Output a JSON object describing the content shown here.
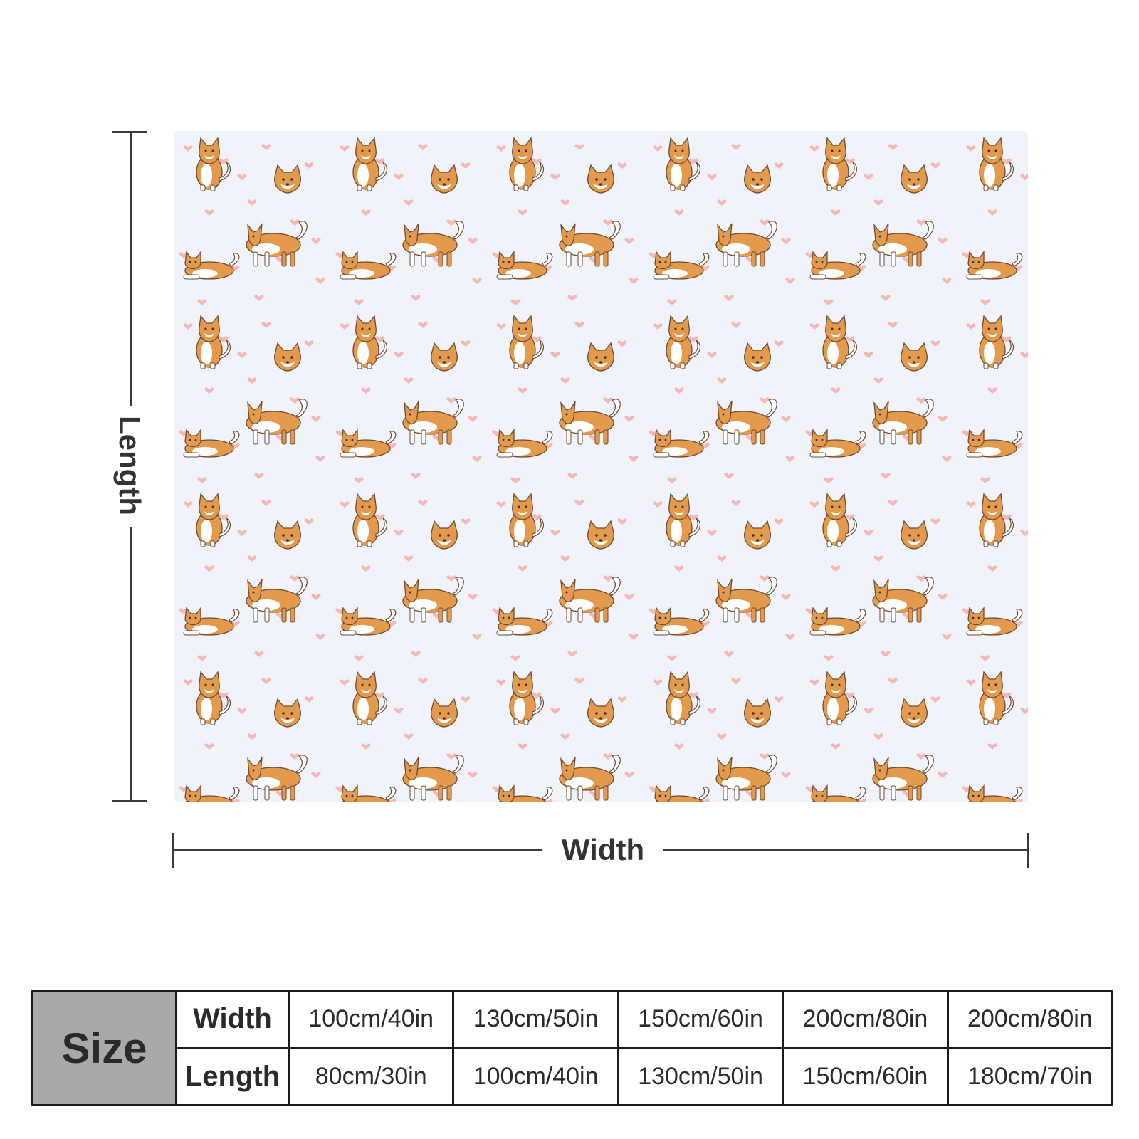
{
  "product": {
    "colors": {
      "fabric": "#f1f3fb",
      "heart": "#f7b7b2",
      "dog_orange": "#e39a4c",
      "dog_cream": "#ffffff",
      "outline": "#6b4a33",
      "dimension_line": "#3a3a3a",
      "size_header_bg": "#a9a9a9"
    },
    "pattern_icons": [
      "shiba-inu-dog-icon",
      "heart-icon"
    ]
  },
  "dimensions": {
    "length_label": "Length",
    "width_label": "Width"
  },
  "size_chart": {
    "header": "Size",
    "rows": [
      {
        "label": "Width",
        "values": [
          "100cm/40in",
          "130cm/50in",
          "150cm/60in",
          "200cm/80in",
          "200cm/80in"
        ]
      },
      {
        "label": "Length",
        "values": [
          "80cm/30in",
          "100cm/40in",
          "130cm/50in",
          "150cm/60in",
          "180cm/70in"
        ]
      }
    ]
  }
}
